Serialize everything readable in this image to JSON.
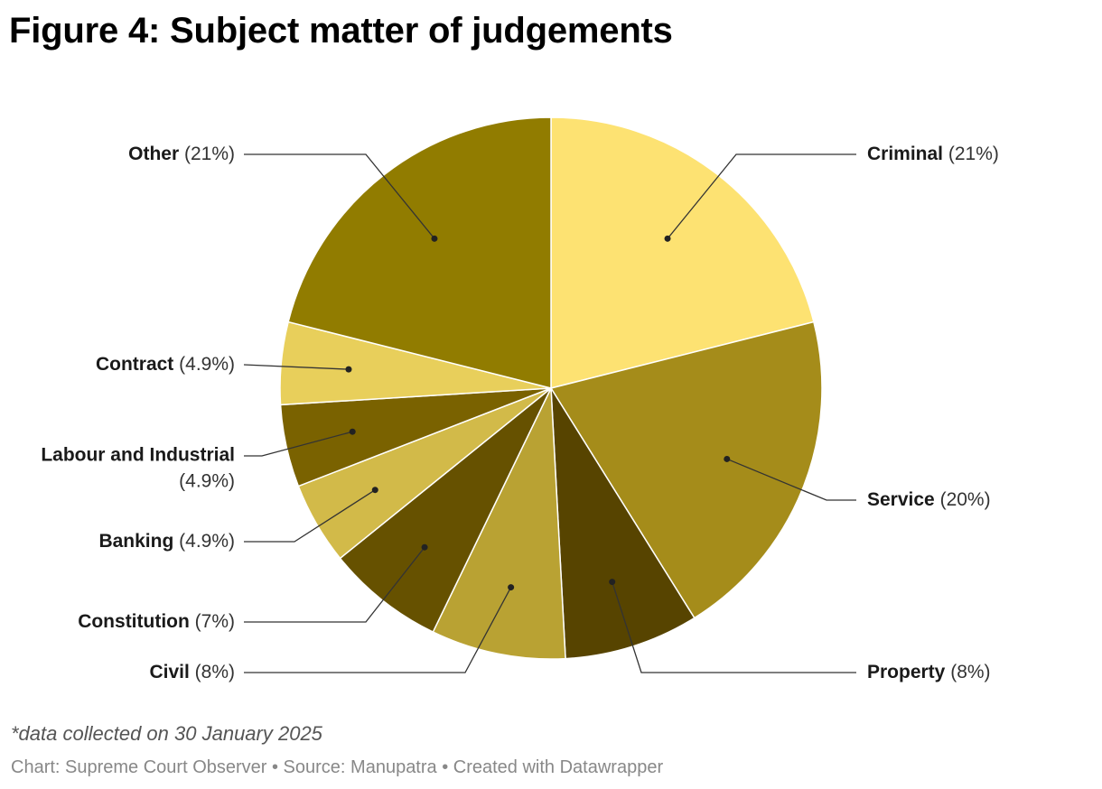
{
  "title": "Figure 4: Subject matter of judgements",
  "note": "*data collected on 30 January 2025",
  "footer": "Chart: Supreme Court Observer • Source: Manupatra • Created with Datawrapper",
  "chart_data": {
    "type": "pie",
    "title": "Figure 4: Subject matter of judgements",
    "slices": [
      {
        "label": "Criminal",
        "value": 21,
        "display": "(21%)",
        "color": "#fde272"
      },
      {
        "label": "Service",
        "value": 20,
        "display": "(20%)",
        "color": "#a58c1a"
      },
      {
        "label": "Property",
        "value": 8,
        "display": "(8%)",
        "color": "#574400"
      },
      {
        "label": "Civil",
        "value": 8,
        "display": "(8%)",
        "color": "#b9a233"
      },
      {
        "label": "Constitution",
        "value": 7,
        "display": "(7%)",
        "color": "#665100"
      },
      {
        "label": "Banking",
        "value": 4.9,
        "display": "(4.9%)",
        "color": "#d2ba49"
      },
      {
        "label": "Labour and Industrial",
        "value": 4.9,
        "display": "(4.9%)",
        "color": "#7a6200"
      },
      {
        "label": "Contract",
        "value": 4.9,
        "display": "(4.9%)",
        "color": "#e8cf5b"
      },
      {
        "label": "Other",
        "value": 21,
        "display": "(21%)",
        "color": "#917c00"
      }
    ]
  }
}
